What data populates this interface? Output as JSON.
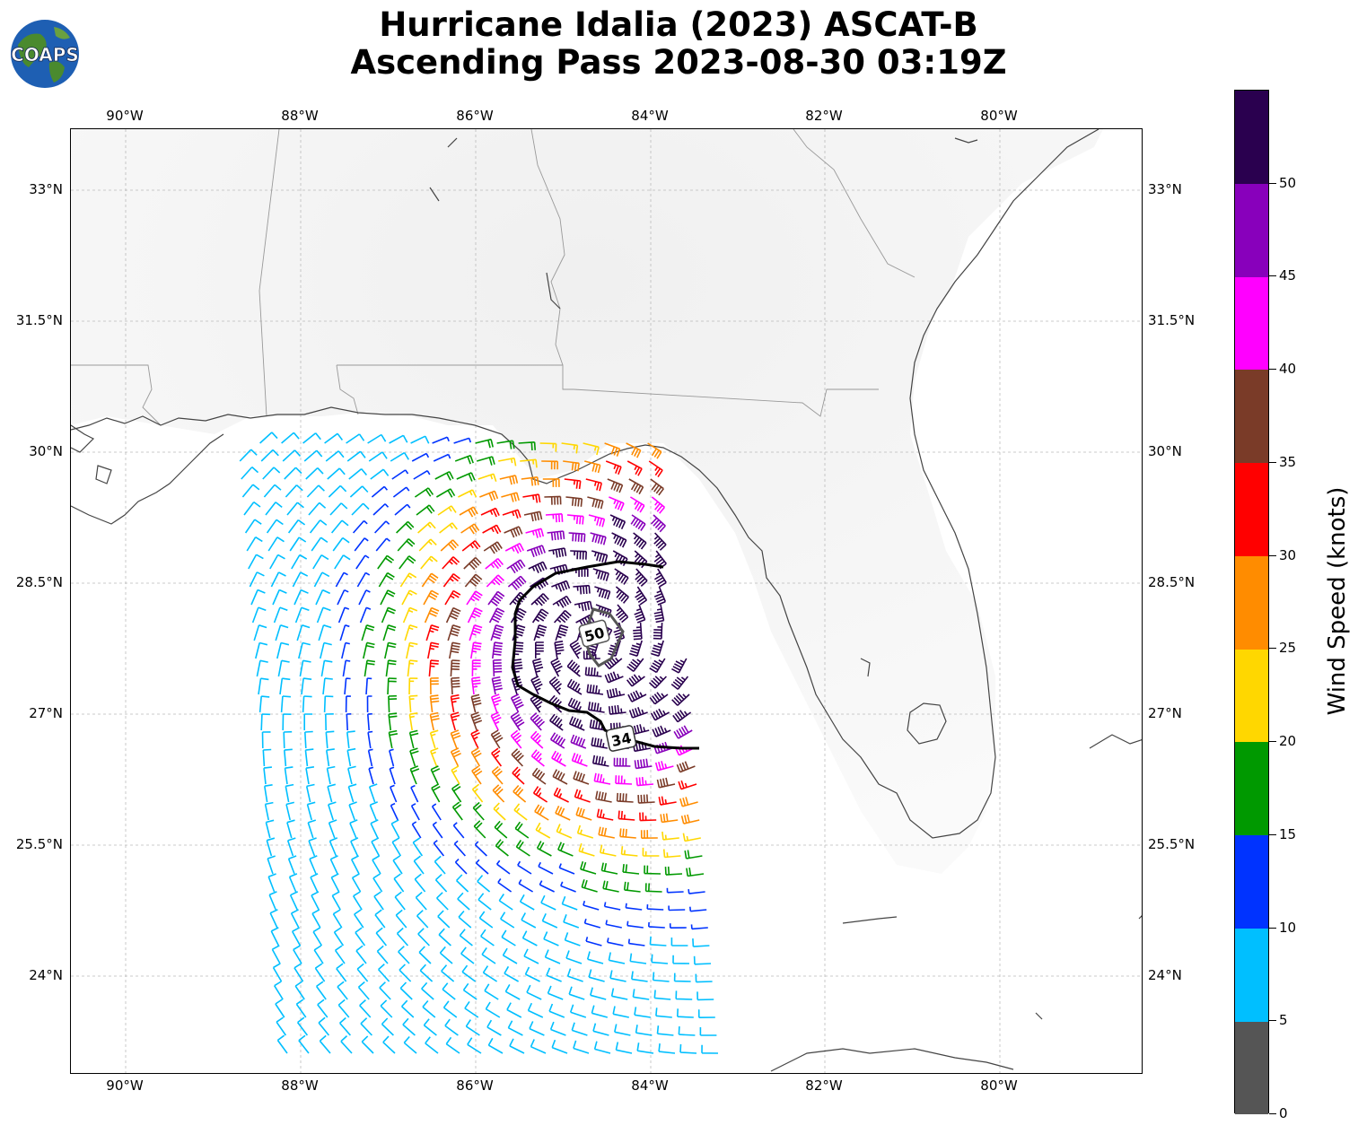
{
  "title_line1": "Hurricane Idalia (2023) ASCAT-B",
  "title_line2": "Ascending Pass 2023-08-30 03:19Z",
  "logo_text": "COAPS",
  "lon_ticks": [
    "90°W",
    "88°W",
    "86°W",
    "84°W",
    "82°W",
    "80°W"
  ],
  "lat_ticks": [
    "33°N",
    "31.5°N",
    "30°N",
    "28.5°N",
    "27°N",
    "25.5°N",
    "24°N"
  ],
  "contour_labels": [
    "50",
    "34"
  ],
  "colorbar": {
    "title": "Wind Speed (knots)",
    "tick_labels": [
      "0",
      "5",
      "10",
      "15",
      "20",
      "25",
      "30",
      "35",
      "40",
      "45",
      "50"
    ],
    "colors": [
      "#555555",
      "#00bfff",
      "#0033ff",
      "#009900",
      "#ffd700",
      "#ff8c00",
      "#ff0000",
      "#7a3b28",
      "#ff00ff",
      "#8800bb",
      "#2a004f"
    ]
  },
  "colors": {
    "coastline": "#444444",
    "state_border": "#999999",
    "grid": "#bbbbbb",
    "radius_contour": "#000000"
  }
}
